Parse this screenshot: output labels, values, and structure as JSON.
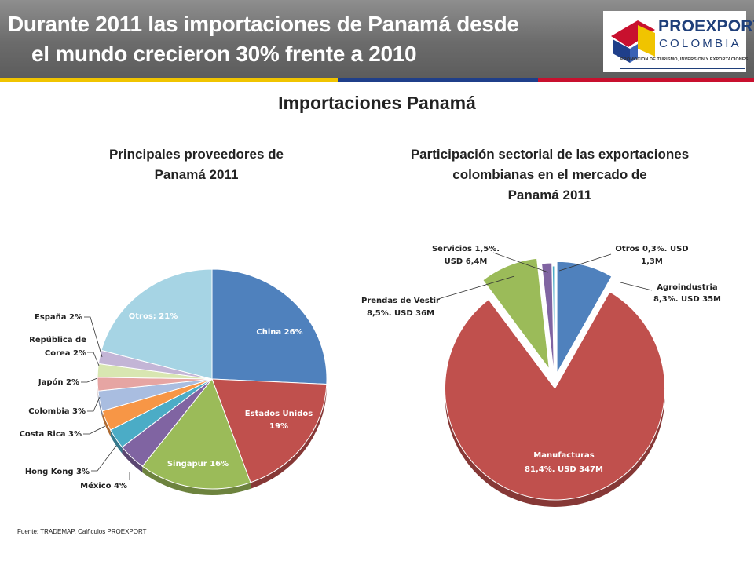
{
  "header": {
    "title_line1": "Durante 2011 las importaciones de Panamá desde",
    "title_line2": "el mundo crecieron 30% frente a 2010"
  },
  "logo": {
    "name": "PROEXPORT",
    "country": "COLOMBIA",
    "tagline": "PROMOCIÓN DE TURISMO, INVERSIÓN Y EXPORTACIONES"
  },
  "subtitle": "Importaciones Panamá",
  "footer": {
    "source": "Fuente: TRADEMAP.   Calñculos  PROEXPORT"
  },
  "colors": {
    "blue": "#4f81bd",
    "red": "#c0504d",
    "green": "#9bbb59",
    "purple": "#8064a2",
    "teal": "#4bacc6",
    "orange": "#f79646",
    "lightblue": "#a6d4e4"
  },
  "chart_data": [
    {
      "type": "pie",
      "title_line1": "Principales proveedores de",
      "title_line2": "Panamá  2011",
      "slices": [
        {
          "name": "China",
          "value": 26,
          "label": "China 26%",
          "color": "#4f81bd"
        },
        {
          "name": "Estados Unidos",
          "value": 19,
          "label": "Estados Unidos 19%",
          "color": "#c0504d"
        },
        {
          "name": "Singapur",
          "value": 16,
          "label": "Singapur 16%",
          "color": "#9bbb59"
        },
        {
          "name": "México",
          "value": 4,
          "label": "México 4%",
          "color": "#8064a2"
        },
        {
          "name": "Hong Kong",
          "value": 3,
          "label": "Hong Kong 3%",
          "color": "#4bacc6"
        },
        {
          "name": "Costa Rica",
          "value": 3,
          "label": "Costa Rica 3%",
          "color": "#f79646"
        },
        {
          "name": "Colombia",
          "value": 3,
          "label": "Colombia 3%",
          "color": "#a9bde0"
        },
        {
          "name": "Japón",
          "value": 2,
          "label": "Japón 2%",
          "color": "#e6a5a3"
        },
        {
          "name": "República de Corea",
          "value": 2,
          "label": "República de Corea 2%",
          "color": "#d8e6b1"
        },
        {
          "name": "España",
          "value": 2,
          "label": "España 2%",
          "color": "#c3b5d6"
        },
        {
          "name": "Otros",
          "value": 21,
          "label": "Otros; 21%",
          "color": "#a6d4e4"
        }
      ]
    },
    {
      "type": "pie",
      "title_line1": "Participación sectorial de las exportaciones",
      "title_line2": "colombianas en el mercado de",
      "title_line3": "Panamá  2011",
      "slices": [
        {
          "name": "Agroindustria",
          "value": 8.3,
          "usd_m": 35,
          "label_l1": "Agroindustria",
          "label_l2": "8,3%. USD 35M",
          "color": "#4f81bd"
        },
        {
          "name": "Manufacturas",
          "value": 81.4,
          "usd_m": 347,
          "label_l1": "Manufacturas",
          "label_l2": "81,4%. USD 347M",
          "color": "#c0504d"
        },
        {
          "name": "Prendas de Vestir",
          "value": 8.5,
          "usd_m": 36,
          "label_l1": "Prendas de Vestir",
          "label_l2": "8,5%. USD 36M",
          "color": "#9bbb59"
        },
        {
          "name": "Servicios",
          "value": 1.5,
          "usd_m": 6.4,
          "label_l1": "Servicios 1,5%.",
          "label_l2": "USD 6,4M",
          "color": "#8064a2"
        },
        {
          "name": "Otros",
          "value": 0.3,
          "usd_m": 1.3,
          "label_l1": "Otros 0,3%. USD",
          "label_l2": "1,3M",
          "color": "#4bacc6"
        }
      ]
    }
  ]
}
